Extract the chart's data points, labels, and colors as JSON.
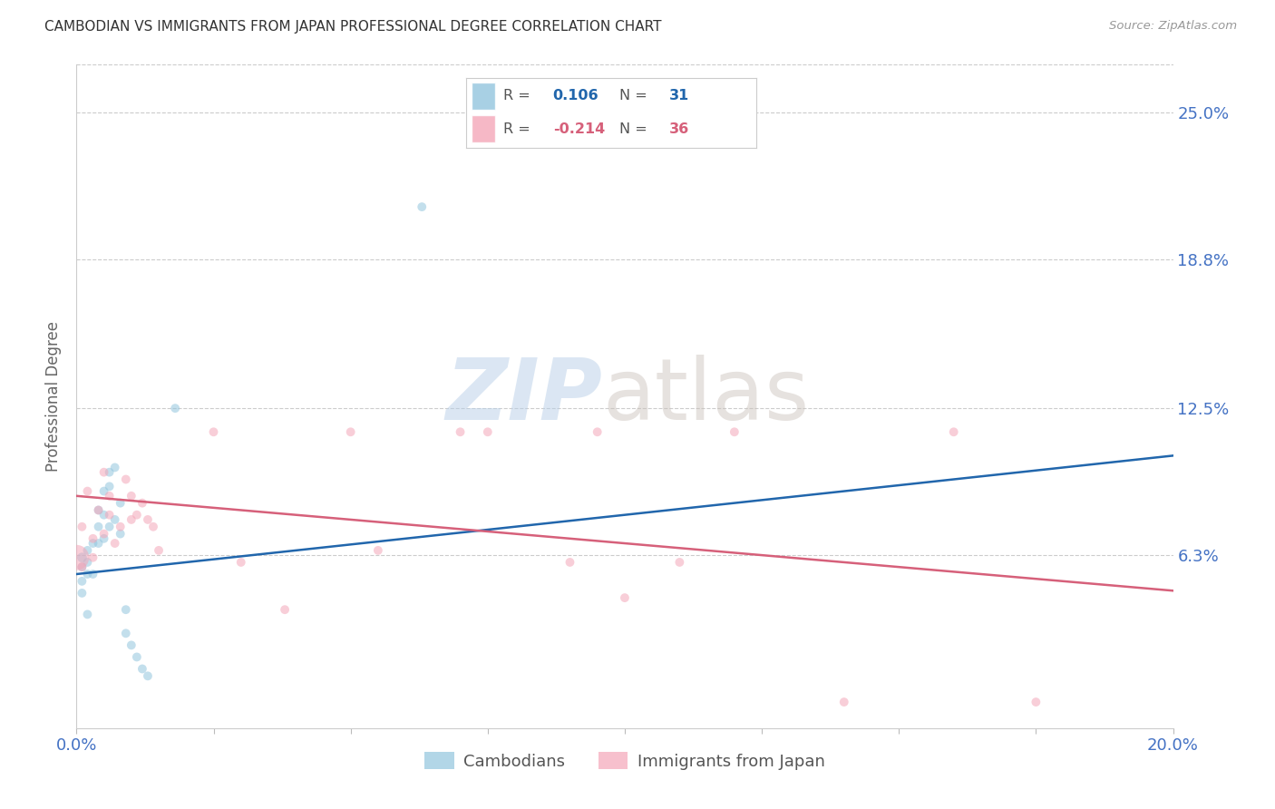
{
  "title": "CAMBODIAN VS IMMIGRANTS FROM JAPAN PROFESSIONAL DEGREE CORRELATION CHART",
  "source": "Source: ZipAtlas.com",
  "ylabel": "Professional Degree",
  "ytick_labels": [
    "25.0%",
    "18.8%",
    "12.5%",
    "6.3%"
  ],
  "ytick_values": [
    0.25,
    0.188,
    0.125,
    0.063
  ],
  "xmin": 0.0,
  "xmax": 0.2,
  "ymin": -0.01,
  "ymax": 0.27,
  "axis_label_color": "#4472c4",
  "blue_color": "#92c5de",
  "pink_color": "#f4a6b8",
  "line_blue": "#2166ac",
  "line_pink": "#d6607a",
  "blue_line_x": [
    0.0,
    0.2
  ],
  "blue_line_y": [
    0.055,
    0.105
  ],
  "pink_line_x": [
    0.0,
    0.2
  ],
  "pink_line_y": [
    0.088,
    0.048
  ],
  "cambodian_x": [
    0.001,
    0.001,
    0.001,
    0.001,
    0.002,
    0.002,
    0.002,
    0.002,
    0.003,
    0.003,
    0.004,
    0.004,
    0.004,
    0.005,
    0.005,
    0.005,
    0.006,
    0.006,
    0.006,
    0.007,
    0.007,
    0.008,
    0.008,
    0.009,
    0.009,
    0.01,
    0.011,
    0.012,
    0.013,
    0.018,
    0.063
  ],
  "cambodian_y": [
    0.062,
    0.058,
    0.052,
    0.047,
    0.065,
    0.06,
    0.055,
    0.038,
    0.068,
    0.055,
    0.082,
    0.075,
    0.068,
    0.09,
    0.08,
    0.07,
    0.098,
    0.092,
    0.075,
    0.1,
    0.078,
    0.085,
    0.072,
    0.04,
    0.03,
    0.025,
    0.02,
    0.015,
    0.012,
    0.125,
    0.21
  ],
  "cambodian_sizes": [
    60,
    50,
    50,
    50,
    50,
    50,
    50,
    50,
    50,
    50,
    50,
    50,
    50,
    50,
    50,
    50,
    50,
    50,
    50,
    50,
    50,
    50,
    50,
    50,
    50,
    50,
    50,
    50,
    50,
    50,
    50
  ],
  "japan_x": [
    0.0,
    0.001,
    0.001,
    0.002,
    0.003,
    0.003,
    0.004,
    0.005,
    0.005,
    0.006,
    0.006,
    0.007,
    0.008,
    0.009,
    0.01,
    0.01,
    0.011,
    0.012,
    0.013,
    0.014,
    0.015,
    0.025,
    0.03,
    0.038,
    0.05,
    0.055,
    0.07,
    0.075,
    0.09,
    0.095,
    0.1,
    0.11,
    0.12,
    0.14,
    0.16,
    0.175
  ],
  "japan_y": [
    0.062,
    0.075,
    0.058,
    0.09,
    0.07,
    0.062,
    0.082,
    0.098,
    0.072,
    0.088,
    0.08,
    0.068,
    0.075,
    0.095,
    0.088,
    0.078,
    0.08,
    0.085,
    0.078,
    0.075,
    0.065,
    0.115,
    0.06,
    0.04,
    0.115,
    0.065,
    0.115,
    0.115,
    0.06,
    0.115,
    0.045,
    0.06,
    0.115,
    0.001,
    0.115,
    0.001
  ],
  "japan_sizes": [
    400,
    50,
    50,
    50,
    50,
    50,
    50,
    50,
    50,
    50,
    50,
    50,
    50,
    50,
    50,
    50,
    50,
    50,
    50,
    50,
    50,
    50,
    50,
    50,
    50,
    50,
    50,
    50,
    50,
    50,
    50,
    50,
    50,
    50,
    50,
    50
  ]
}
